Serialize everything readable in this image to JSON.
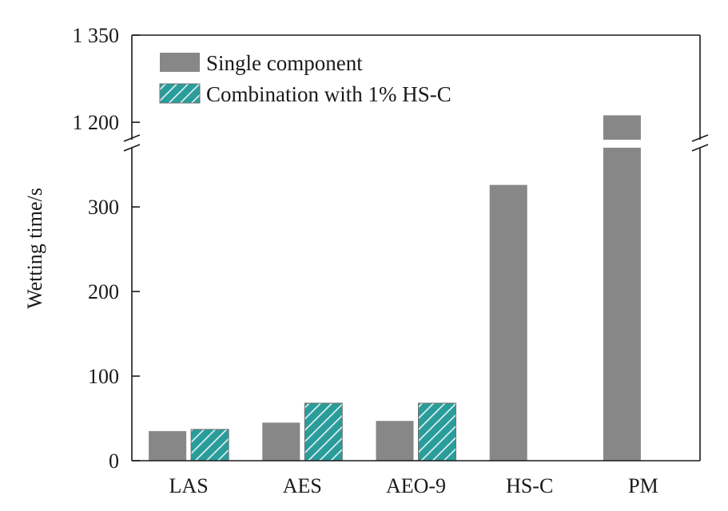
{
  "chart_data": {
    "type": "bar",
    "title": "",
    "xlabel": "",
    "ylabel": "Wetting time/s",
    "categories": [
      "LAS",
      "AES",
      "AEO-9",
      "HS-C",
      "PM"
    ],
    "series": [
      {
        "name": "Single component",
        "values": [
          35,
          45,
          47,
          326,
          1212
        ],
        "color": "#878787"
      },
      {
        "name": "Combination with 1% HS-C",
        "values": [
          37,
          68,
          68,
          null,
          null
        ],
        "color": "#2a9d9b",
        "hatch_color": "#e8f4f4"
      }
    ],
    "y_axis": {
      "broken": true,
      "lower_segment": {
        "range": [
          0,
          370
        ],
        "ticks": [
          0,
          100,
          200,
          300
        ],
        "tick_labels": [
          "0",
          "100",
          "200",
          "300"
        ]
      },
      "upper_segment": {
        "range": [
          1170,
          1350
        ],
        "ticks": [
          1200,
          1350
        ],
        "tick_labels": [
          "1 200",
          "1 350"
        ]
      }
    },
    "legend_position": "top-left",
    "grid": false
  }
}
